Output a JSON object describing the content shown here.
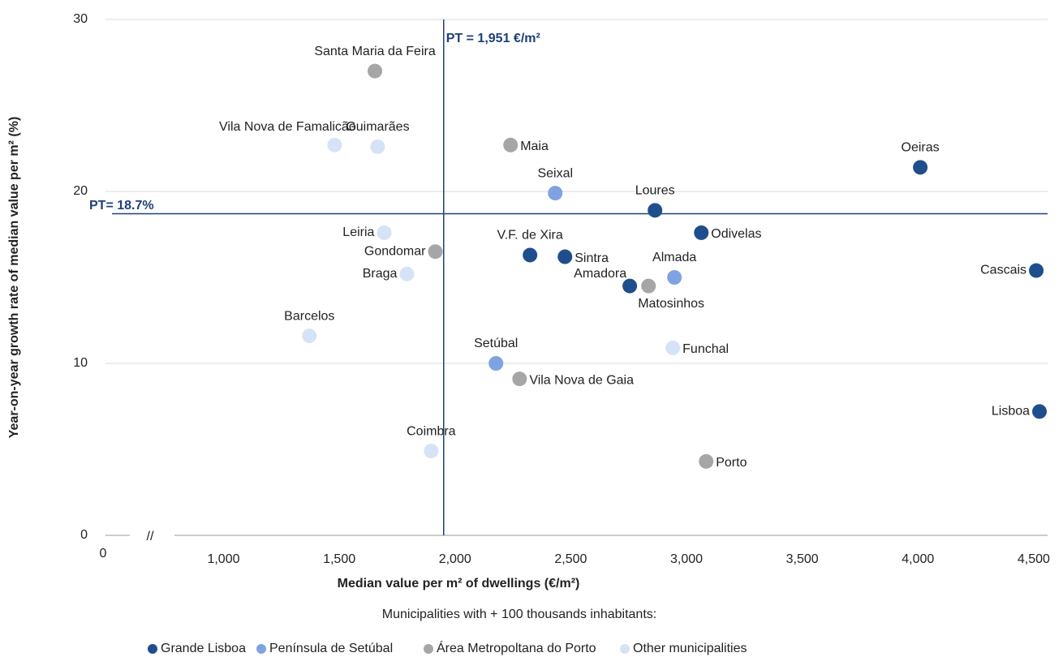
{
  "chart_data": {
    "type": "scatter",
    "x_label": "Median value per m² of dwellings (€/m²)",
    "y_label": "Year-on-year growth rate of median value per m² (%)",
    "legend_title": "Municipalities with + 100 thousands inhabitants:",
    "legend": "bottom",
    "x_origin_label": "0",
    "axis_break_label": "//",
    "xlim": [
      490,
      4560
    ],
    "xticks": [
      {
        "value": 1000,
        "label": "1,000"
      },
      {
        "value": 1500,
        "label": "1,500"
      },
      {
        "value": 2000,
        "label": "2,000"
      },
      {
        "value": 2500,
        "label": "2,500"
      },
      {
        "value": 3000,
        "label": "3,000"
      },
      {
        "value": 3500,
        "label": "3,500"
      },
      {
        "value": 4000,
        "label": "4,000"
      },
      {
        "value": 4500,
        "label": "4,500"
      }
    ],
    "ylim": [
      0,
      30
    ],
    "yticks": [
      0,
      10,
      20,
      30
    ],
    "reference_x": {
      "value": 1951,
      "label": "PT = 1,951 €/m²",
      "color": "#1f3f7a"
    },
    "reference_y": {
      "value": 18.7,
      "label": "PT= 18.7%",
      "color": "#1f3f7a"
    },
    "series": [
      {
        "name": "Grande Lisboa",
        "color": "#1f4e8c",
        "labels": [
          "Oeiras",
          "Loures",
          "Odivelas",
          "V.F. de Xira",
          "Sintra",
          "Cascais",
          "Amadora",
          "Lisboa"
        ],
        "x": [
          4010,
          2864,
          3064,
          2324,
          2475,
          4511,
          2755,
          4525
        ],
        "values": [
          21.4,
          18.9,
          17.6,
          16.3,
          16.2,
          15.4,
          14.5,
          7.2
        ]
      },
      {
        "name": "Península de Setúbal",
        "color": "#7fa3e0",
        "labels": [
          "Seixal",
          "Almada",
          "Setúbal"
        ],
        "x": [
          2433,
          2948,
          2177
        ],
        "values": [
          19.9,
          15.0,
          10.0
        ]
      },
      {
        "name": "Área Metropoltana do Porto",
        "color": "#a6a6a6",
        "labels": [
          "Santa Maria da Feira",
          "Maia",
          "Gondomar",
          "Matosinhos",
          "Vila Nova de Gaia",
          "Porto"
        ],
        "x": [
          1654,
          2240,
          1915,
          2836,
          2279,
          3085
        ],
        "values": [
          27.0,
          22.7,
          16.5,
          14.5,
          9.1,
          4.3
        ]
      },
      {
        "name": "Other municipalities",
        "color": "#d6e3f7",
        "labels": [
          "Vila Nova de Famalicão",
          "Guimarães",
          "Leiria",
          "Braga",
          "Barcelos",
          "Funchal",
          "Coimbra"
        ],
        "x": [
          1480,
          1666,
          1694,
          1792,
          1371,
          2941,
          1897
        ],
        "values": [
          22.7,
          22.6,
          17.6,
          15.2,
          11.6,
          10.9,
          4.9
        ]
      }
    ]
  }
}
